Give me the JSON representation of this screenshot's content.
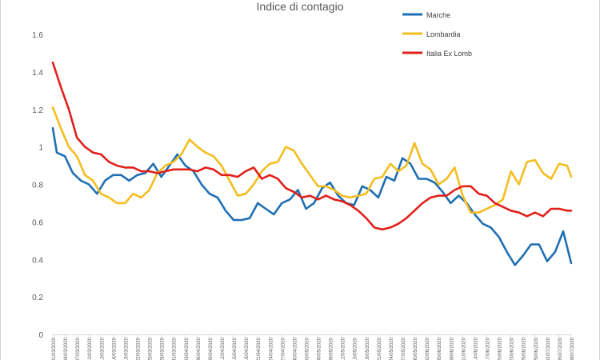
{
  "chart_data": {
    "type": "line",
    "title": "Indice di contagio",
    "xlabel": "",
    "ylabel": "",
    "ylim": [
      0,
      1.6
    ],
    "yticks": [
      0,
      0.2,
      0.4,
      0.6,
      0.8,
      1,
      1.2,
      1.4,
      1.6
    ],
    "ytick_labels": [
      "0",
      "0.2",
      "0.4",
      "0.6",
      "0.8",
      "1",
      "1.2",
      "1.4",
      "1.6"
    ],
    "grid": false,
    "legend_position": "top-right",
    "x_start": "2020-03-01",
    "x_end": "2020-07-08",
    "xtick_labels": [
      "01/03/2020",
      "04/03/2020",
      "07/03/2020",
      "10/03/2020",
      "13/03/2020",
      "16/03/2020",
      "19/03/2020",
      "22/03/2020",
      "25/03/2020",
      "28/03/2020",
      "31/03/2020",
      "03/04/2020",
      "06/04/2020",
      "09/04/2020",
      "12/04/2020",
      "15/04/2020",
      "18/04/2020",
      "21/04/2020",
      "24/04/2020",
      "27/04/2020",
      "30/04/2020",
      "03/05/2020",
      "06/05/2020",
      "09/05/2020",
      "12/05/2020",
      "15/05/2020",
      "18/05/2020",
      "21/05/2020",
      "24/05/2020",
      "27/05/2020",
      "30/05/2020",
      "02/06/2020",
      "05/06/2020",
      "08/06/2020",
      "11/06/2020",
      "14/06/2020",
      "17/06/2020",
      "20/06/2020",
      "23/06/2020",
      "26/06/2020",
      "29/06/2020",
      "02/07/2020",
      "05/07/2020",
      "08/07/2020"
    ],
    "series": [
      {
        "name": "Marche",
        "color": "#1f6fb4",
        "points": [
          [
            "2020-03-01",
            1.1
          ],
          [
            "2020-03-02",
            0.97
          ],
          [
            "2020-03-04",
            0.95
          ],
          [
            "2020-03-06",
            0.86
          ],
          [
            "2020-03-08",
            0.82
          ],
          [
            "2020-03-10",
            0.8
          ],
          [
            "2020-03-12",
            0.75
          ],
          [
            "2020-03-14",
            0.82
          ],
          [
            "2020-03-16",
            0.85
          ],
          [
            "2020-03-18",
            0.85
          ],
          [
            "2020-03-20",
            0.82
          ],
          [
            "2020-03-22",
            0.85
          ],
          [
            "2020-03-24",
            0.86
          ],
          [
            "2020-03-26",
            0.91
          ],
          [
            "2020-03-28",
            0.84
          ],
          [
            "2020-03-30",
            0.9
          ],
          [
            "2020-04-01",
            0.96
          ],
          [
            "2020-04-03",
            0.9
          ],
          [
            "2020-04-05",
            0.87
          ],
          [
            "2020-04-07",
            0.8
          ],
          [
            "2020-04-09",
            0.75
          ],
          [
            "2020-04-11",
            0.73
          ],
          [
            "2020-04-13",
            0.66
          ],
          [
            "2020-04-15",
            0.61
          ],
          [
            "2020-04-17",
            0.61
          ],
          [
            "2020-04-19",
            0.62
          ],
          [
            "2020-04-21",
            0.7
          ],
          [
            "2020-04-23",
            0.67
          ],
          [
            "2020-04-25",
            0.64
          ],
          [
            "2020-04-27",
            0.7
          ],
          [
            "2020-04-29",
            0.72
          ],
          [
            "2020-05-01",
            0.77
          ],
          [
            "2020-05-03",
            0.67
          ],
          [
            "2020-05-05",
            0.7
          ],
          [
            "2020-05-07",
            0.78
          ],
          [
            "2020-05-09",
            0.81
          ],
          [
            "2020-05-11",
            0.74
          ],
          [
            "2020-05-13",
            0.7
          ],
          [
            "2020-05-15",
            0.69
          ],
          [
            "2020-05-17",
            0.79
          ],
          [
            "2020-05-19",
            0.77
          ],
          [
            "2020-05-21",
            0.73
          ],
          [
            "2020-05-23",
            0.84
          ],
          [
            "2020-05-25",
            0.82
          ],
          [
            "2020-05-27",
            0.94
          ],
          [
            "2020-05-29",
            0.91
          ],
          [
            "2020-05-31",
            0.83
          ],
          [
            "2020-06-02",
            0.83
          ],
          [
            "2020-06-04",
            0.81
          ],
          [
            "2020-06-06",
            0.76
          ],
          [
            "2020-06-08",
            0.7
          ],
          [
            "2020-06-10",
            0.74
          ],
          [
            "2020-06-12",
            0.7
          ],
          [
            "2020-06-14",
            0.64
          ],
          [
            "2020-06-16",
            0.59
          ],
          [
            "2020-06-18",
            0.57
          ],
          [
            "2020-06-20",
            0.52
          ],
          [
            "2020-06-22",
            0.44
          ],
          [
            "2020-06-24",
            0.37
          ],
          [
            "2020-06-26",
            0.42
          ],
          [
            "2020-06-28",
            0.48
          ],
          [
            "2020-06-30",
            0.48
          ],
          [
            "2020-07-02",
            0.39
          ],
          [
            "2020-07-04",
            0.44
          ],
          [
            "2020-07-06",
            0.55
          ],
          [
            "2020-07-08",
            0.38
          ]
        ]
      },
      {
        "name": "Lombardia",
        "color": "#f5bd1f",
        "points": [
          [
            "2020-03-01",
            1.21
          ],
          [
            "2020-03-03",
            1.1
          ],
          [
            "2020-03-05",
            1.0
          ],
          [
            "2020-03-07",
            0.95
          ],
          [
            "2020-03-09",
            0.85
          ],
          [
            "2020-03-11",
            0.82
          ],
          [
            "2020-03-13",
            0.75
          ],
          [
            "2020-03-15",
            0.73
          ],
          [
            "2020-03-17",
            0.7
          ],
          [
            "2020-03-19",
            0.7
          ],
          [
            "2020-03-21",
            0.75
          ],
          [
            "2020-03-23",
            0.73
          ],
          [
            "2020-03-25",
            0.77
          ],
          [
            "2020-03-27",
            0.86
          ],
          [
            "2020-03-29",
            0.9
          ],
          [
            "2020-03-31",
            0.92
          ],
          [
            "2020-04-02",
            0.96
          ],
          [
            "2020-04-04",
            1.04
          ],
          [
            "2020-04-06",
            1.0
          ],
          [
            "2020-04-08",
            0.97
          ],
          [
            "2020-04-10",
            0.95
          ],
          [
            "2020-04-12",
            0.9
          ],
          [
            "2020-04-14",
            0.82
          ],
          [
            "2020-04-16",
            0.74
          ],
          [
            "2020-04-18",
            0.75
          ],
          [
            "2020-04-20",
            0.8
          ],
          [
            "2020-04-22",
            0.87
          ],
          [
            "2020-04-24",
            0.91
          ],
          [
            "2020-04-26",
            0.92
          ],
          [
            "2020-04-28",
            1.0
          ],
          [
            "2020-04-30",
            0.98
          ],
          [
            "2020-05-02",
            0.91
          ],
          [
            "2020-05-04",
            0.85
          ],
          [
            "2020-05-06",
            0.79
          ],
          [
            "2020-05-08",
            0.79
          ],
          [
            "2020-05-10",
            0.77
          ],
          [
            "2020-05-12",
            0.74
          ],
          [
            "2020-05-14",
            0.73
          ],
          [
            "2020-05-16",
            0.74
          ],
          [
            "2020-05-18",
            0.75
          ],
          [
            "2020-05-20",
            0.83
          ],
          [
            "2020-05-22",
            0.84
          ],
          [
            "2020-05-24",
            0.91
          ],
          [
            "2020-05-26",
            0.87
          ],
          [
            "2020-05-28",
            0.9
          ],
          [
            "2020-05-30",
            1.02
          ],
          [
            "2020-06-01",
            0.91
          ],
          [
            "2020-06-03",
            0.88
          ],
          [
            "2020-06-05",
            0.8
          ],
          [
            "2020-06-07",
            0.83
          ],
          [
            "2020-06-09",
            0.89
          ],
          [
            "2020-06-11",
            0.74
          ],
          [
            "2020-06-13",
            0.65
          ],
          [
            "2020-06-15",
            0.65
          ],
          [
            "2020-06-17",
            0.67
          ],
          [
            "2020-06-19",
            0.69
          ],
          [
            "2020-06-21",
            0.72
          ],
          [
            "2020-06-23",
            0.87
          ],
          [
            "2020-06-25",
            0.8
          ],
          [
            "2020-06-27",
            0.92
          ],
          [
            "2020-06-29",
            0.93
          ],
          [
            "2020-07-01",
            0.86
          ],
          [
            "2020-07-03",
            0.83
          ],
          [
            "2020-07-05",
            0.91
          ],
          [
            "2020-07-07",
            0.9
          ],
          [
            "2020-07-08",
            0.84
          ]
        ]
      },
      {
        "name": "Italia Ex Lomb",
        "color": "#e0201b",
        "points": [
          [
            "2020-03-01",
            1.45
          ],
          [
            "2020-03-03",
            1.32
          ],
          [
            "2020-03-05",
            1.2
          ],
          [
            "2020-03-07",
            1.05
          ],
          [
            "2020-03-09",
            1.0
          ],
          [
            "2020-03-11",
            0.97
          ],
          [
            "2020-03-13",
            0.96
          ],
          [
            "2020-03-15",
            0.92
          ],
          [
            "2020-03-17",
            0.9
          ],
          [
            "2020-03-19",
            0.89
          ],
          [
            "2020-03-21",
            0.89
          ],
          [
            "2020-03-23",
            0.87
          ],
          [
            "2020-03-25",
            0.87
          ],
          [
            "2020-03-27",
            0.86
          ],
          [
            "2020-03-29",
            0.87
          ],
          [
            "2020-03-31",
            0.88
          ],
          [
            "2020-04-02",
            0.88
          ],
          [
            "2020-04-04",
            0.88
          ],
          [
            "2020-04-06",
            0.87
          ],
          [
            "2020-04-08",
            0.89
          ],
          [
            "2020-04-10",
            0.88
          ],
          [
            "2020-04-12",
            0.85
          ],
          [
            "2020-04-14",
            0.85
          ],
          [
            "2020-04-16",
            0.84
          ],
          [
            "2020-04-18",
            0.87
          ],
          [
            "2020-04-20",
            0.89
          ],
          [
            "2020-04-22",
            0.83
          ],
          [
            "2020-04-24",
            0.85
          ],
          [
            "2020-04-26",
            0.83
          ],
          [
            "2020-04-28",
            0.78
          ],
          [
            "2020-04-30",
            0.76
          ],
          [
            "2020-05-02",
            0.73
          ],
          [
            "2020-05-04",
            0.74
          ],
          [
            "2020-05-06",
            0.72
          ],
          [
            "2020-05-08",
            0.74
          ],
          [
            "2020-05-10",
            0.72
          ],
          [
            "2020-05-12",
            0.71
          ],
          [
            "2020-05-14",
            0.69
          ],
          [
            "2020-05-16",
            0.66
          ],
          [
            "2020-05-18",
            0.62
          ],
          [
            "2020-05-20",
            0.57
          ],
          [
            "2020-05-22",
            0.56
          ],
          [
            "2020-05-24",
            0.57
          ],
          [
            "2020-05-26",
            0.59
          ],
          [
            "2020-05-28",
            0.62
          ],
          [
            "2020-05-30",
            0.66
          ],
          [
            "2020-06-01",
            0.7
          ],
          [
            "2020-06-03",
            0.73
          ],
          [
            "2020-06-05",
            0.74
          ],
          [
            "2020-06-07",
            0.74
          ],
          [
            "2020-06-09",
            0.77
          ],
          [
            "2020-06-11",
            0.79
          ],
          [
            "2020-06-13",
            0.79
          ],
          [
            "2020-06-15",
            0.75
          ],
          [
            "2020-06-17",
            0.74
          ],
          [
            "2020-06-19",
            0.7
          ],
          [
            "2020-06-21",
            0.68
          ],
          [
            "2020-06-23",
            0.66
          ],
          [
            "2020-06-25",
            0.65
          ],
          [
            "2020-06-27",
            0.63
          ],
          [
            "2020-06-29",
            0.65
          ],
          [
            "2020-07-01",
            0.63
          ],
          [
            "2020-07-03",
            0.67
          ],
          [
            "2020-07-05",
            0.67
          ],
          [
            "2020-07-07",
            0.66
          ],
          [
            "2020-07-08",
            0.66
          ]
        ]
      }
    ]
  }
}
